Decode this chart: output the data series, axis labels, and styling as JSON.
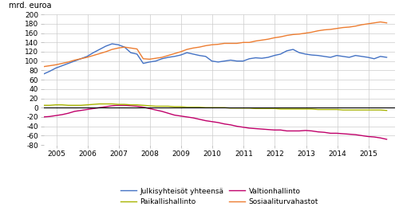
{
  "ylabel": "mrd. euroa",
  "ylim": [
    -80,
    200
  ],
  "yticks": [
    -80,
    -60,
    -40,
    -20,
    0,
    20,
    40,
    60,
    80,
    100,
    120,
    140,
    160,
    180,
    200
  ],
  "xticks": [
    2005,
    2006,
    2007,
    2008,
    2009,
    2010,
    2011,
    2012,
    2013,
    2014,
    2015
  ],
  "xlim": [
    2004.6,
    2015.85
  ],
  "background_color": "#ffffff",
  "grid_color": "#cccccc",
  "legend_entries": [
    "Julkisyhteisöt yhteensä",
    "Valtionhallinto",
    "Paikallishallinto",
    "Sosiaaliturvahastot"
  ],
  "colors": {
    "julkis": "#4472c4",
    "valtio": "#c0006a",
    "paikalli": "#a8b400",
    "sosiaali": "#ed7d31"
  },
  "julkis": [
    72,
    78,
    85,
    90,
    95,
    100,
    105,
    110,
    118,
    125,
    132,
    137,
    135,
    130,
    118,
    115,
    95,
    98,
    100,
    105,
    108,
    110,
    113,
    118,
    115,
    112,
    110,
    100,
    98,
    100,
    102,
    100,
    100,
    105,
    107,
    106,
    108,
    112,
    115,
    122,
    125,
    118,
    115,
    113,
    112,
    110,
    108,
    112,
    110,
    108,
    112,
    110,
    108,
    105,
    110,
    108
  ],
  "valtio": [
    -20,
    -19,
    -17,
    -15,
    -12,
    -8,
    -6,
    -4,
    -2,
    0,
    2,
    4,
    5,
    5,
    4,
    3,
    1,
    -2,
    -5,
    -8,
    -12,
    -16,
    -18,
    -20,
    -22,
    -25,
    -28,
    -30,
    -32,
    -35,
    -37,
    -40,
    -42,
    -44,
    -45,
    -46,
    -47,
    -48,
    -48,
    -50,
    -50,
    -50,
    -49,
    -50,
    -52,
    -53,
    -55,
    -55,
    -56,
    -57,
    -58,
    -60,
    -62,
    -63,
    -65,
    -68
  ],
  "paikalli": [
    5,
    5,
    6,
    6,
    5,
    5,
    5,
    6,
    7,
    8,
    8,
    8,
    7,
    7,
    6,
    6,
    5,
    4,
    3,
    3,
    3,
    2,
    2,
    1,
    1,
    1,
    0,
    0,
    0,
    0,
    -1,
    -1,
    -1,
    -1,
    -2,
    -2,
    -2,
    -2,
    -3,
    -3,
    -3,
    -3,
    -3,
    -3,
    -4,
    -4,
    -4,
    -4,
    -5,
    -5,
    -5,
    -5,
    -5,
    -5,
    -5,
    -6
  ],
  "sosiaali": [
    88,
    90,
    92,
    95,
    98,
    102,
    105,
    108,
    112,
    116,
    120,
    125,
    128,
    130,
    128,
    126,
    105,
    104,
    106,
    108,
    112,
    116,
    120,
    125,
    128,
    130,
    133,
    135,
    136,
    138,
    138,
    138,
    140,
    140,
    143,
    145,
    147,
    150,
    152,
    155,
    157,
    158,
    160,
    162,
    165,
    167,
    168,
    170,
    172,
    173,
    175,
    178,
    180,
    182,
    184,
    182
  ],
  "n_points": 56,
  "x_start": 2004.583,
  "x_step": 0.2
}
